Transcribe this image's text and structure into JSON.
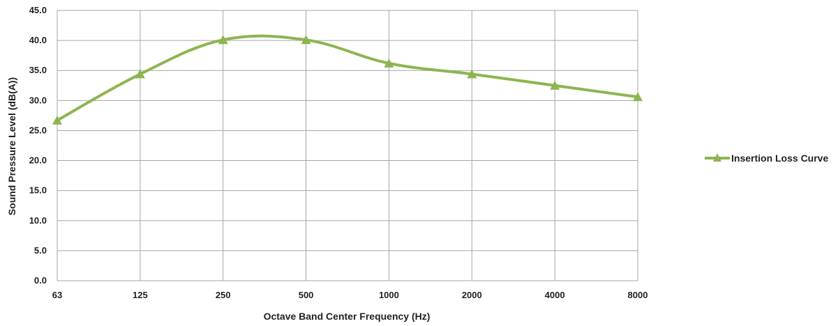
{
  "chart_data": {
    "type": "line",
    "title": "",
    "xlabel": "Octave Band Center Frequency (Hz)",
    "ylabel": "Sound Pressure Level (dB(A))",
    "categories": [
      "63",
      "125",
      "250",
      "500",
      "1000",
      "2000",
      "4000",
      "8000"
    ],
    "yticks": [
      "0.0",
      "5.0",
      "10.0",
      "15.0",
      "20.0",
      "25.0",
      "30.0",
      "35.0",
      "40.0",
      "45.0"
    ],
    "ylim": [
      0,
      45
    ],
    "grid": true,
    "smooth": true,
    "legend_position": "right",
    "series": [
      {
        "name": "Insertion Loss Curve",
        "color": "#8db550",
        "marker": "triangle",
        "values": [
          26.7,
          34.4,
          40.1,
          40.1,
          36.2,
          34.4,
          32.5,
          30.6
        ]
      }
    ]
  }
}
